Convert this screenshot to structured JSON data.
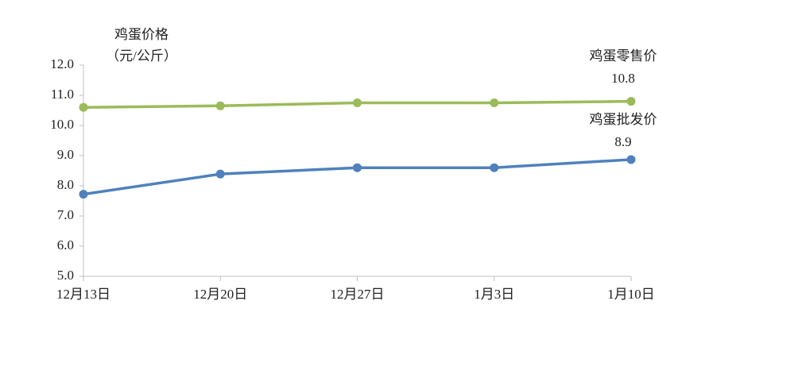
{
  "chart_data": {
    "type": "line",
    "y_label": [
      "鸡蛋价格",
      "（元/公斤）"
    ],
    "categories": [
      "12月13日",
      "12月20日",
      "12月27日",
      "1月3日",
      "1月10日"
    ],
    "series": [
      {
        "name": "鸡蛋零售价",
        "color": "#9bbb59",
        "values": [
          10.6,
          10.65,
          10.75,
          10.75,
          10.8
        ]
      },
      {
        "name": "鸡蛋批发价",
        "color": "#4f81bd",
        "values": [
          7.72,
          8.39,
          8.6,
          8.6,
          8.87
        ],
        "value_labels": [
          null,
          null,
          null,
          null,
          "8.9"
        ]
      }
    ],
    "ylim": [
      5,
      12
    ],
    "yticks": [
      {
        "value": 5,
        "label": "5.0"
      },
      {
        "value": 6,
        "label": "6.0"
      },
      {
        "value": 7,
        "label": "7.0"
      },
      {
        "value": 8,
        "label": "8.0"
      },
      {
        "value": 9,
        "label": "9.0"
      },
      {
        "value": 10,
        "label": "10.0"
      },
      {
        "value": 11,
        "label": "11.0"
      },
      {
        "value": 12,
        "label": "12.0"
      }
    ],
    "grid": false
  }
}
